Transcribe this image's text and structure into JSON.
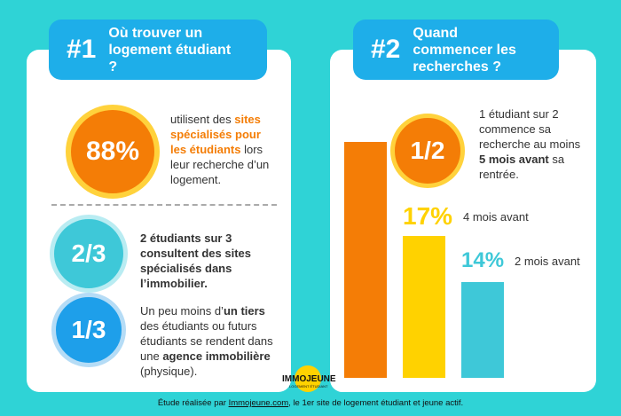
{
  "panel1": {
    "number": "#1",
    "title": "Où trouver un logement étudiant ?",
    "stats": [
      {
        "figure": "88%",
        "text": [
          "utilisent des ",
          "sites spécialisés pour les étudiants",
          " lors leur recherche d’un logement."
        ]
      },
      {
        "figure": "2/3",
        "text": [
          "2 étudiants sur 3 consultent des ",
          "sites spécialisés dans l’immobilier",
          "."
        ]
      },
      {
        "figure": "1/3",
        "text": [
          "Un peu moins d’",
          "un tiers",
          " des étudiants ou futurs étudiants se rendent dans une ",
          "agence immobilière",
          " (physique)."
        ]
      }
    ]
  },
  "panel2": {
    "number": "#2",
    "title": "Quand commencer les recherches ?",
    "stats": [
      {
        "figure": "1/2",
        "text": [
          "1 étudiant sur 2 commence sa recherche au moins ",
          "5 mois avant",
          " sa rentrée."
        ]
      },
      {
        "figure": "17%",
        "text": [
          "4 mois avant"
        ]
      },
      {
        "figure": "14%",
        "text": [
          "2 mois avant"
        ]
      }
    ]
  },
  "logo": {
    "name": "IMMOJEUNE",
    "tagline": "LOGEMENT ÉTUDIANT"
  },
  "footer": [
    "Étude réalisée par ",
    "Immojeune.com",
    ", le 1er site de logement étudiant et jeune actif."
  ]
}
